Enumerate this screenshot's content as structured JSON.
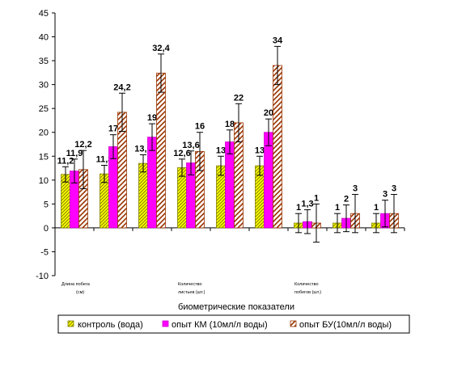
{
  "chart_data": {
    "type": "bar",
    "xlabel": "биометрические показатели",
    "ylabel": "",
    "ylim": [
      -10,
      45
    ],
    "yticks": [
      -10,
      -5,
      0,
      5,
      10,
      15,
      20,
      25,
      30,
      35,
      40,
      45
    ],
    "grid": false,
    "legend_position": "bottom",
    "category_labels": [
      [
        "Длина побега",
        "(см)"
      ],
      [
        "Количество",
        "листьев (шт.)"
      ],
      [
        "Количество",
        "побегов (шт.)"
      ]
    ],
    "groups": 9,
    "series": [
      {
        "name": "контроль (вода)",
        "color": "#ffff00",
        "pattern": "diagonal-lines",
        "values": [
          11.2,
          11.3,
          13.5,
          12.6,
          13,
          13,
          1,
          1,
          1
        ],
        "labels": [
          "11,2",
          "11,3",
          "13,5",
          "12,6",
          "13",
          "13",
          "1",
          "1",
          "1"
        ],
        "errors": [
          1.6,
          1.8,
          1.8,
          1.8,
          2.0,
          2.0,
          2.0,
          2.0,
          2.0
        ]
      },
      {
        "name": "опыт КМ (10мл/л воды)",
        "color": "#ff00ff",
        "pattern": "solid",
        "values": [
          11.9,
          17,
          19,
          13.6,
          18,
          20,
          1.3,
          2,
          3
        ],
        "labels": [
          "11,9",
          "17",
          "19",
          "13,6",
          "18",
          "20",
          "1,3",
          "2",
          "3"
        ],
        "errors": [
          2.5,
          2.5,
          2.8,
          2.5,
          2.5,
          2.8,
          2.5,
          2.8,
          2.8
        ]
      },
      {
        "name": "опыт БУ(10мл/л воды)",
        "color": "#993300",
        "pattern": "diagonal-bricks",
        "values": [
          12.2,
          24.2,
          32.4,
          16,
          22,
          34,
          1,
          3,
          3
        ],
        "labels": [
          "12,2",
          "24,2",
          "32,4",
          "16",
          "22",
          "34",
          "1",
          "3",
          "3"
        ],
        "errors": [
          4.0,
          4.0,
          4.0,
          4.0,
          4.0,
          4.0,
          4.0,
          4.0,
          4.0
        ]
      }
    ]
  }
}
